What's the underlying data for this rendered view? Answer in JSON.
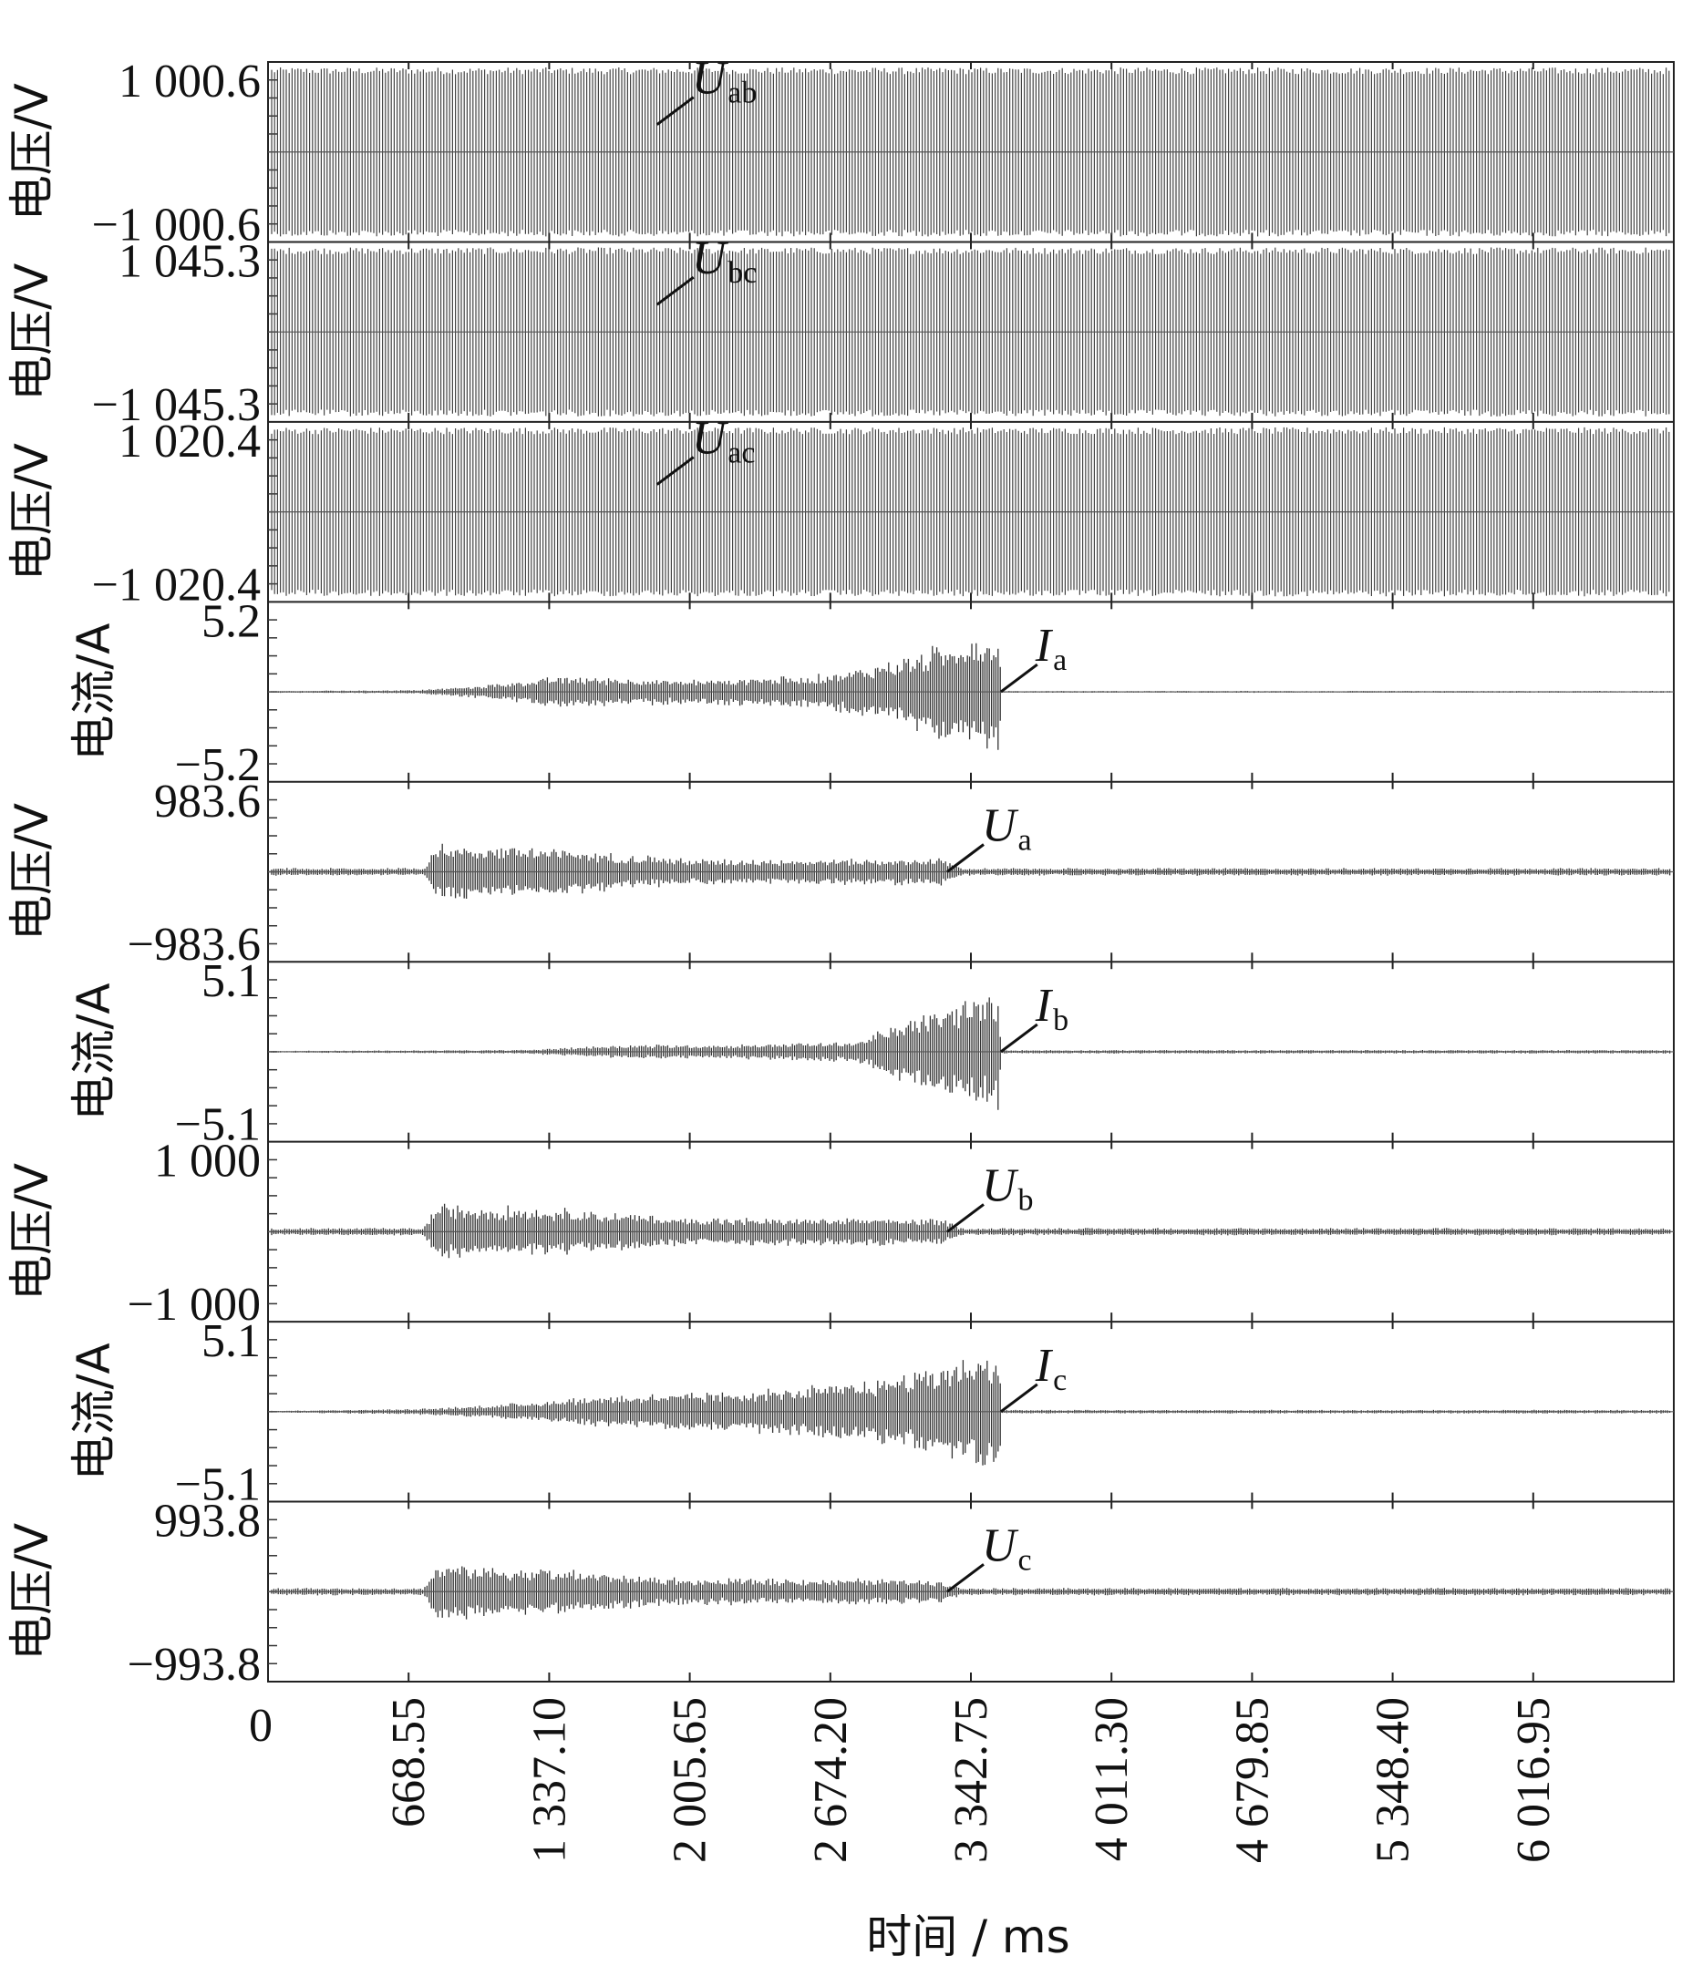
{
  "chart_data": {
    "type": "line",
    "x_axis": {
      "label": "时间 / ms",
      "ticks": [
        "0",
        "668.55",
        "1 337.10",
        "2 005.65",
        "2 674.20",
        "3 342.75",
        "4 011.30",
        "4 679.85",
        "5 348.40",
        "6 016.95"
      ],
      "tick_values": [
        0,
        668.55,
        1337.1,
        2005.65,
        2674.2,
        3342.75,
        4011.3,
        4679.85,
        5348.4,
        6016.95
      ],
      "range": [
        0,
        6685.5
      ]
    },
    "panels": [
      {
        "ylabel": "电压/V",
        "ymax_label": "1 000.6",
        "ymin_label": "−1 000.6",
        "signal": "U",
        "sub": "ab",
        "ylim": [
          -1000.6,
          1000.6
        ],
        "envelope": {
          "x": [
            0,
            6685.5
          ],
          "amp": [
            1000.6,
            1000.6
          ]
        }
      },
      {
        "ylabel": "电压/V",
        "ymax_label": "1 045.3",
        "ymin_label": "−1 045.3",
        "signal": "U",
        "sub": "bc",
        "ylim": [
          -1045.3,
          1045.3
        ],
        "envelope": {
          "x": [
            0,
            6685.5
          ],
          "amp": [
            1045.3,
            1045.3
          ]
        }
      },
      {
        "ylabel": "电压/V",
        "ymax_label": "1 020.4",
        "ymin_label": "−1 020.4",
        "signal": "U",
        "sub": "ac",
        "ylim": [
          -1020.4,
          1020.4
        ],
        "envelope": {
          "x": [
            0,
            6685.5
          ],
          "amp": [
            1020.4,
            1020.4
          ]
        }
      },
      {
        "ylabel": "电流/A",
        "ymax_label": "5.2",
        "ymin_label": "−5.2",
        "signal": "I",
        "sub": "a",
        "ylim": [
          -5.2,
          5.2
        ],
        "envelope": {
          "x": [
            0,
            700,
            1000,
            1400,
            2000,
            2600,
            3000,
            3300,
            3480,
            3485,
            6685.5
          ],
          "amp": [
            0.05,
            0.1,
            0.35,
            0.9,
            0.7,
            0.95,
            1.8,
            3.2,
            3.5,
            0.05,
            0.05
          ]
        }
      },
      {
        "ylabel": "电压/V",
        "ymax_label": "983.6",
        "ymin_label": "−983.6",
        "signal": "U",
        "sub": "a",
        "ylim": [
          -983.6,
          983.6
        ],
        "envelope": {
          "x": [
            0,
            740,
            800,
            1400,
            2000,
            2800,
            3200,
            3300,
            6685.5
          ],
          "amp": [
            40,
            40,
            310,
            250,
            140,
            140,
            150,
            40,
            40
          ]
        }
      },
      {
        "ylabel": "电流/A",
        "ymax_label": "5.1",
        "ymin_label": "−5.1",
        "signal": "I",
        "sub": "b",
        "ylim": [
          -5.1,
          5.1
        ],
        "envelope": {
          "x": [
            0,
            1200,
            1700,
            2200,
            2800,
            3000,
            3300,
            3480,
            3485,
            6685.5
          ],
          "amp": [
            0.05,
            0.1,
            0.4,
            0.4,
            0.6,
            1.6,
            2.8,
            3.2,
            0.1,
            0.1
          ]
        }
      },
      {
        "ylabel": "电压/V",
        "ymax_label": "1 000",
        "ymin_label": "−1 000",
        "signal": "U",
        "sub": "b",
        "ylim": [
          -1000,
          1000
        ],
        "envelope": {
          "x": [
            0,
            740,
            800,
            1400,
            2000,
            2800,
            3200,
            3300,
            6685.5
          ],
          "amp": [
            40,
            40,
            300,
            260,
            150,
            150,
            140,
            40,
            40
          ]
        }
      },
      {
        "ylabel": "电流/A",
        "ymax_label": "5.1",
        "ymin_label": "−5.1",
        "signal": "I",
        "sub": "c",
        "ylim": [
          -5.1,
          5.1
        ],
        "envelope": {
          "x": [
            0,
            700,
            1100,
            1600,
            2200,
            2800,
            3200,
            3480,
            3485,
            6685.5
          ],
          "amp": [
            0.05,
            0.15,
            0.4,
            0.9,
            1.1,
            1.6,
            2.6,
            3.6,
            0.1,
            0.1
          ]
        }
      },
      {
        "ylabel": "电压/V",
        "ymax_label": "993.8",
        "ymin_label": "−993.8",
        "signal": "U",
        "sub": "c",
        "ylim": [
          -993.8,
          993.8
        ],
        "envelope": {
          "x": [
            0,
            740,
            800,
            1400,
            2000,
            2800,
            3200,
            3300,
            6685.5
          ],
          "amp": [
            40,
            40,
            310,
            240,
            140,
            140,
            130,
            40,
            40
          ]
        }
      }
    ]
  }
}
